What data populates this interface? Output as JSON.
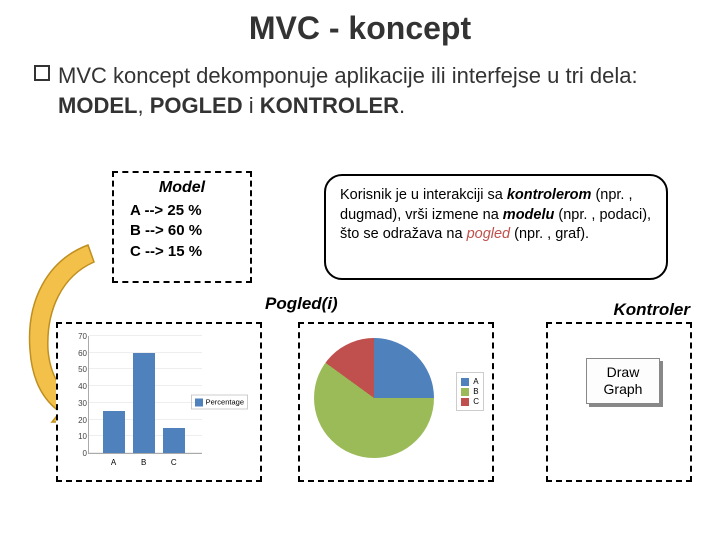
{
  "title": "MVC - koncept",
  "subtitle": {
    "pre": "MVC koncept dekomponuje aplikacije ili interfejse u tri dela: ",
    "b1": "MODEL",
    "mid1": ", ",
    "b2": "POGLED",
    "mid2": " i ",
    "b3": "KONTROLER",
    "post": "."
  },
  "model": {
    "title": "Model",
    "rows": [
      "A --> 25 %",
      "B --> 60 %",
      "C --> 15 %"
    ]
  },
  "callout": {
    "t1": "Korisnik je u interakciji sa ",
    "em1": "kontrolerom",
    "t2": " (npr. , dugmad), vrši izmene na ",
    "em2": "modelu",
    "t3": " (npr. , podaci), što se odražava na ",
    "em3": "pogled",
    "t4": " (npr. , graf)."
  },
  "pogledi_label": "Pogled(i)",
  "kontroler_label": "Kontroler",
  "button": {
    "line1": "Draw",
    "line2": "Graph"
  },
  "bar_chart": {
    "type": "bar",
    "categories": [
      "A",
      "B",
      "C"
    ],
    "values": [
      25,
      60,
      15
    ],
    "bar_color": "#4f81bd",
    "ylim": [
      0,
      70
    ],
    "ytick_step": 10,
    "yticks": [
      0,
      10,
      20,
      30,
      40,
      50,
      60,
      70
    ],
    "background_color": "#ffffff",
    "grid_color": "#eeeeee",
    "legend_label": "Percentage",
    "legend_color": "#4f81bd",
    "label_fontsize": 8
  },
  "pie_chart": {
    "type": "pie",
    "labels": [
      "A",
      "B",
      "C"
    ],
    "values": [
      25,
      60,
      15
    ],
    "colors": [
      "#4f81bd",
      "#9bbb59",
      "#c0504d"
    ],
    "background_color": "#ffffff"
  },
  "arrow": {
    "fill": "#f3c04a",
    "stroke": "#bf8f1f"
  }
}
